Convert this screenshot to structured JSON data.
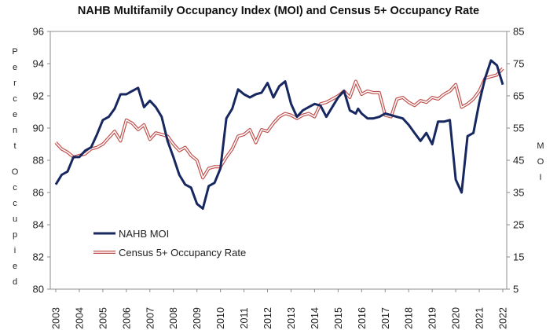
{
  "chart_data": {
    "type": "line",
    "title": "NAHB Multifamily Occupancy Index (MOI) and Census 5+ Occupancy Rate",
    "ylabel_left": "Percent Occupied",
    "ylabel_right": "MOI",
    "y_left": {
      "min": 80,
      "max": 96,
      "step": 2,
      "ticks": [
        "80",
        "82",
        "84",
        "86",
        "88",
        "90",
        "92",
        "94",
        "96"
      ]
    },
    "y_right": {
      "min": 5,
      "max": 85,
      "step": 10,
      "ticks": [
        "5",
        "15",
        "25",
        "35",
        "45",
        "55",
        "65",
        "75",
        "85"
      ]
    },
    "x": {
      "min": 2003,
      "max": 2022,
      "ticks": [
        "2003",
        "2004",
        "2005",
        "2006",
        "2007",
        "2008",
        "2009",
        "2010",
        "2011",
        "2012",
        "2013",
        "2014",
        "2015",
        "2016",
        "2017",
        "2018",
        "2019",
        "2020",
        "2021",
        "2022"
      ]
    },
    "grid": "none",
    "legend_position": "bottom-left",
    "series": [
      {
        "name": "NAHB MOI",
        "axis": "right",
        "color": "#17275f",
        "points": [
          [
            2003.0,
            37.5
          ],
          [
            2003.25,
            40.5
          ],
          [
            2003.5,
            41.5
          ],
          [
            2003.75,
            46.0
          ],
          [
            2004.0,
            46.0
          ],
          [
            2004.25,
            48.0
          ],
          [
            2004.5,
            49.0
          ],
          [
            2004.75,
            53.0
          ],
          [
            2005.0,
            57.5
          ],
          [
            2005.25,
            58.5
          ],
          [
            2005.5,
            61.0
          ],
          [
            2005.75,
            65.5
          ],
          [
            2006.0,
            65.5
          ],
          [
            2006.25,
            66.5
          ],
          [
            2006.5,
            67.5
          ],
          [
            2006.75,
            61.5
          ],
          [
            2007.0,
            63.5
          ],
          [
            2007.25,
            61.5
          ],
          [
            2007.5,
            58.5
          ],
          [
            2007.75,
            51.0
          ],
          [
            2008.0,
            46.0
          ],
          [
            2008.25,
            40.5
          ],
          [
            2008.5,
            37.5
          ],
          [
            2008.75,
            36.5
          ],
          [
            2009.0,
            31.5
          ],
          [
            2009.25,
            30.0
          ],
          [
            2009.5,
            37.0
          ],
          [
            2009.75,
            38.0
          ],
          [
            2010.0,
            42.5
          ],
          [
            2010.25,
            58.0
          ],
          [
            2010.5,
            61.0
          ],
          [
            2010.75,
            67.0
          ],
          [
            2011.0,
            65.5
          ],
          [
            2011.25,
            64.5
          ],
          [
            2011.5,
            65.5
          ],
          [
            2011.75,
            66.0
          ],
          [
            2012.0,
            69.0
          ],
          [
            2012.25,
            64.5
          ],
          [
            2012.5,
            68.0
          ],
          [
            2012.75,
            69.5
          ],
          [
            2013.0,
            62.5
          ],
          [
            2013.25,
            58.5
          ],
          [
            2013.5,
            60.5
          ],
          [
            2013.75,
            61.5
          ],
          [
            2014.0,
            62.5
          ],
          [
            2014.25,
            62.0
          ],
          [
            2014.5,
            58.5
          ],
          [
            2014.75,
            61.5
          ],
          [
            2015.0,
            64.5
          ],
          [
            2015.25,
            66.5
          ],
          [
            2015.5,
            60.5
          ],
          [
            2015.75,
            59.5
          ],
          [
            2015.85,
            61.0
          ],
          [
            2016.0,
            59.5
          ],
          [
            2016.25,
            58.0
          ],
          [
            2016.5,
            58.0
          ],
          [
            2016.75,
            58.5
          ],
          [
            2017.0,
            59.5
          ],
          [
            2017.25,
            59.0
          ],
          [
            2017.5,
            58.5
          ],
          [
            2017.75,
            58.0
          ],
          [
            2018.0,
            56.0
          ],
          [
            2018.25,
            53.5
          ],
          [
            2018.5,
            51.0
          ],
          [
            2018.75,
            53.5
          ],
          [
            2019.0,
            50.0
          ],
          [
            2019.25,
            57.0
          ],
          [
            2019.5,
            57.0
          ],
          [
            2019.75,
            57.5
          ],
          [
            2020.0,
            39.0
          ],
          [
            2020.25,
            35.0
          ],
          [
            2020.5,
            52.5
          ],
          [
            2020.75,
            53.5
          ],
          [
            2021.0,
            63.0
          ],
          [
            2021.25,
            70.5
          ],
          [
            2021.5,
            76.0
          ],
          [
            2021.75,
            74.5
          ],
          [
            2022.0,
            68.5
          ]
        ]
      },
      {
        "name": "Census 5+ Occupancy Rate",
        "axis": "left",
        "color": "#c0504d",
        "points": [
          [
            2003.0,
            89.1
          ],
          [
            2003.25,
            88.7
          ],
          [
            2003.5,
            88.5
          ],
          [
            2003.75,
            88.2
          ],
          [
            2004.0,
            88.3
          ],
          [
            2004.25,
            88.4
          ],
          [
            2004.5,
            88.7
          ],
          [
            2004.75,
            88.8
          ],
          [
            2005.0,
            89.0
          ],
          [
            2005.25,
            89.4
          ],
          [
            2005.5,
            89.8
          ],
          [
            2005.75,
            89.2
          ],
          [
            2006.0,
            90.5
          ],
          [
            2006.25,
            90.3
          ],
          [
            2006.5,
            89.9
          ],
          [
            2006.75,
            90.2
          ],
          [
            2007.0,
            89.3
          ],
          [
            2007.25,
            89.7
          ],
          [
            2007.5,
            89.6
          ],
          [
            2007.75,
            89.5
          ],
          [
            2008.0,
            89.0
          ],
          [
            2008.25,
            88.6
          ],
          [
            2008.5,
            88.8
          ],
          [
            2008.75,
            88.3
          ],
          [
            2009.0,
            88.0
          ],
          [
            2009.25,
            86.9
          ],
          [
            2009.5,
            87.5
          ],
          [
            2009.75,
            87.6
          ],
          [
            2010.0,
            87.6
          ],
          [
            2010.25,
            88.2
          ],
          [
            2010.5,
            88.7
          ],
          [
            2010.75,
            89.5
          ],
          [
            2011.0,
            89.6
          ],
          [
            2011.25,
            89.9
          ],
          [
            2011.5,
            89.1
          ],
          [
            2011.75,
            89.9
          ],
          [
            2012.0,
            89.8
          ],
          [
            2012.25,
            90.3
          ],
          [
            2012.5,
            90.7
          ],
          [
            2012.75,
            90.9
          ],
          [
            2013.0,
            90.8
          ],
          [
            2013.25,
            90.6
          ],
          [
            2013.5,
            90.8
          ],
          [
            2013.75,
            90.9
          ],
          [
            2014.0,
            90.7
          ],
          [
            2014.25,
            91.5
          ],
          [
            2014.5,
            91.6
          ],
          [
            2014.75,
            91.8
          ],
          [
            2015.0,
            92.0
          ],
          [
            2015.25,
            92.3
          ],
          [
            2015.5,
            91.9
          ],
          [
            2015.75,
            92.9
          ],
          [
            2016.0,
            92.1
          ],
          [
            2016.25,
            92.3
          ],
          [
            2016.5,
            92.2
          ],
          [
            2016.75,
            92.2
          ],
          [
            2017.0,
            90.8
          ],
          [
            2017.25,
            90.7
          ],
          [
            2017.5,
            91.8
          ],
          [
            2017.75,
            91.9
          ],
          [
            2018.0,
            91.6
          ],
          [
            2018.25,
            91.4
          ],
          [
            2018.5,
            91.7
          ],
          [
            2018.75,
            91.6
          ],
          [
            2019.0,
            91.9
          ],
          [
            2019.25,
            91.8
          ],
          [
            2019.5,
            92.1
          ],
          [
            2019.75,
            92.3
          ],
          [
            2020.0,
            92.7
          ],
          [
            2020.25,
            91.3
          ],
          [
            2020.5,
            91.5
          ],
          [
            2020.75,
            91.8
          ],
          [
            2021.0,
            92.3
          ],
          [
            2021.25,
            93.1
          ],
          [
            2021.5,
            93.2
          ],
          [
            2021.75,
            93.3
          ],
          [
            2022.0,
            93.7
          ]
        ]
      }
    ]
  }
}
